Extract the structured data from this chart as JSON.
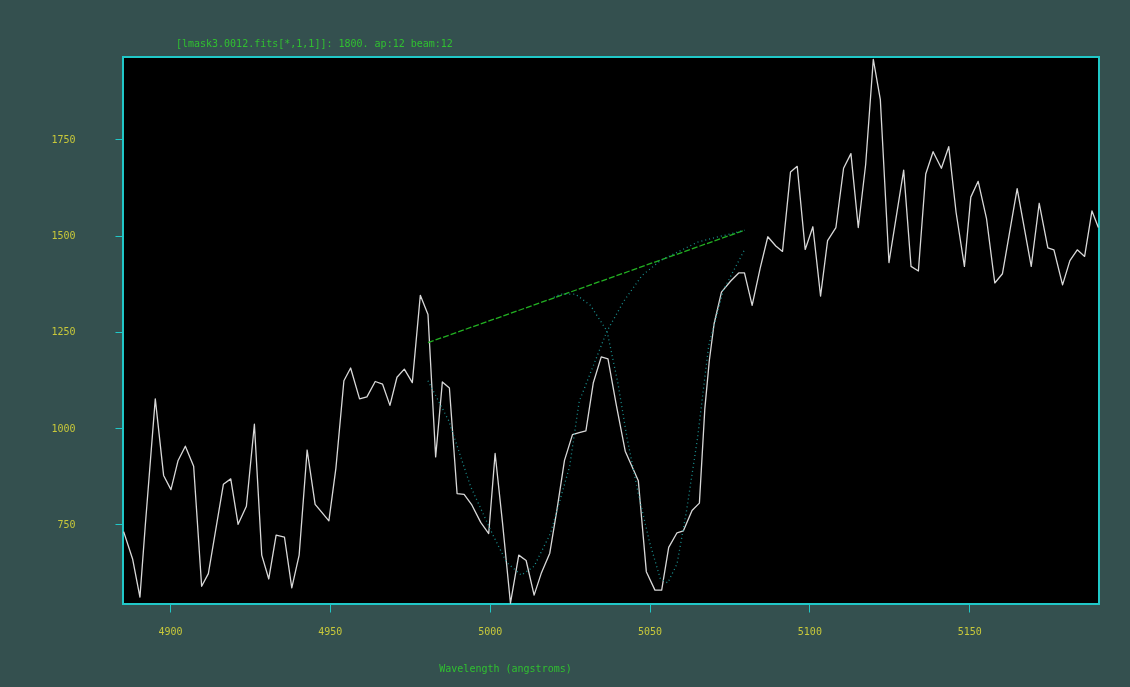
{
  "chart_data": {
    "type": "line",
    "title": "[lmask3.0012.fits[*,1,1]]:  1800. ap:12 beam:12",
    "xlabel": "Wavelength (angstroms)",
    "xlim": [
      4885.3,
      5190.6
    ],
    "ylim": [
      543,
      1964
    ],
    "xticks": [
      4900,
      4950,
      5000,
      5050,
      5100,
      5150
    ],
    "yticks": [
      750,
      1000,
      1250,
      1500,
      1750
    ],
    "grid": false,
    "marker": "none",
    "series": [
      {
        "color": "#d8d8d8",
        "line_style": "solid",
        "x": [
          4885.5,
          4888.3,
          4890.6,
          4892.3,
          4895.4,
          4898.0,
          4900.3,
          4902.5,
          4904.8,
          4907.4,
          4909.9,
          4912.0,
          4916.7,
          4919.0,
          4921.3,
          4923.9,
          4926.4,
          4928.7,
          4930.9,
          4933.2,
          4935.8,
          4938.1,
          4940.4,
          4942.9,
          4945.4,
          4949.7,
          4951.9,
          4954.4,
          4956.5,
          4959.3,
          4961.6,
          4964.2,
          4966.5,
          4968.8,
          4971.0,
          4973.3,
          4975.8,
          4978.3,
          4980.7,
          4983.1,
          4985.2,
          4987.4,
          4989.8,
          4992.0,
          4994.3,
          4997.2,
          4999.7,
          5001.7,
          5004.0,
          5006.5,
          5009.1,
          5011.4,
          5013.9,
          5016.1,
          5018.8,
          5021.1,
          5023.4,
          5025.9,
          5028.0,
          5030.1,
          5032.4,
          5034.9,
          5037.0,
          5039.6,
          5042.4,
          5046.5,
          5049.0,
          5051.7,
          5053.8,
          5056.0,
          5058.6,
          5060.6,
          5063.3,
          5065.6,
          5067.3,
          5068.7,
          5070.2,
          5072.5,
          5075.4,
          5077.9,
          5079.7,
          5082.1,
          5084.6,
          5087.0,
          5089.5,
          5091.6,
          5094.1,
          5096.2,
          5098.7,
          5101.1,
          5103.5,
          5105.7,
          5108.3,
          5110.7,
          5113.0,
          5115.3,
          5117.6,
          5120.0,
          5122.2,
          5124.9,
          5129.5,
          5131.8,
          5134.1,
          5136.4,
          5138.7,
          5141.3,
          5143.6,
          5145.9,
          5148.5,
          5150.5,
          5152.8,
          5155.4,
          5158.0,
          5160.4,
          5165.0,
          5169.4,
          5171.9,
          5174.6,
          5176.5,
          5179.2,
          5181.5,
          5183.8,
          5186.1,
          5188.4,
          5190.4
        ],
        "values": [
          731,
          660,
          561,
          750,
          1076,
          877,
          840,
          915,
          953,
          901,
          589,
          622,
          854,
          868,
          750,
          797,
          1010,
          670,
          608,
          722,
          717,
          585,
          670,
          943,
          802,
          759,
          896,
          1123,
          1156,
          1076,
          1081,
          1121,
          1114,
          1059,
          1132,
          1153,
          1118,
          1345,
          1295,
          925,
          1120,
          1104,
          830,
          828,
          802,
          755,
          726,
          934,
          755,
          545,
          670,
          656,
          566,
          622,
          675,
          791,
          916,
          983,
          988,
          993,
          1117,
          1185,
          1180,
          1060,
          940,
          863,
          627,
          579,
          579,
          690,
          728,
          733,
          786,
          805,
          1050,
          1175,
          1271,
          1353,
          1382,
          1403,
          1403,
          1319,
          1415,
          1497,
          1473,
          1459,
          1665,
          1680,
          1464,
          1523,
          1343,
          1487,
          1521,
          1675,
          1713,
          1521,
          1684,
          1958,
          1853,
          1430,
          1670,
          1420,
          1408,
          1660,
          1718,
          1675,
          1731,
          1560,
          1420,
          1600,
          1641,
          1545,
          1377,
          1401,
          1622,
          1420,
          1584,
          1468,
          1463,
          1372,
          1435,
          1463,
          1446,
          1564,
          1521
        ]
      },
      {
        "color": "#22b022",
        "line_style": "dashed",
        "x": [
          4980.7,
          5079.7
        ],
        "values": [
          1222,
          1514
        ]
      },
      {
        "color": "#1a9090",
        "line_style": "dotted",
        "x": [
          4980.7,
          4987.2,
          4994.0,
          5000.8,
          5005.3,
          5009.9,
          5013.9,
          5019.0,
          5025.0,
          5028.0,
          5032.6,
          5036.7,
          5041.9,
          5047.6,
          5053.4,
          5065.0,
          5079.7
        ],
        "values": [
          1123,
          1019,
          849,
          726,
          651,
          618,
          641,
          726,
          900,
          1069,
          1166,
          1252,
          1329,
          1396,
          1435,
          1483,
          1514
        ]
      },
      {
        "color": "#1a9090",
        "line_style": "dotted",
        "x": [
          5020.1,
          5022.2,
          5026.8,
          5031.5,
          5036.7,
          5040.1,
          5043.0,
          5046.5,
          5050.0,
          5053.4,
          5055.7,
          5058.6,
          5061.5,
          5065.0,
          5068.5,
          5073.1,
          5079.7
        ],
        "values": [
          1340,
          1348,
          1348,
          1319,
          1252,
          1117,
          973,
          829,
          704,
          608,
          598,
          647,
          781,
          973,
          1214,
          1358,
          1463
        ]
      }
    ]
  }
}
